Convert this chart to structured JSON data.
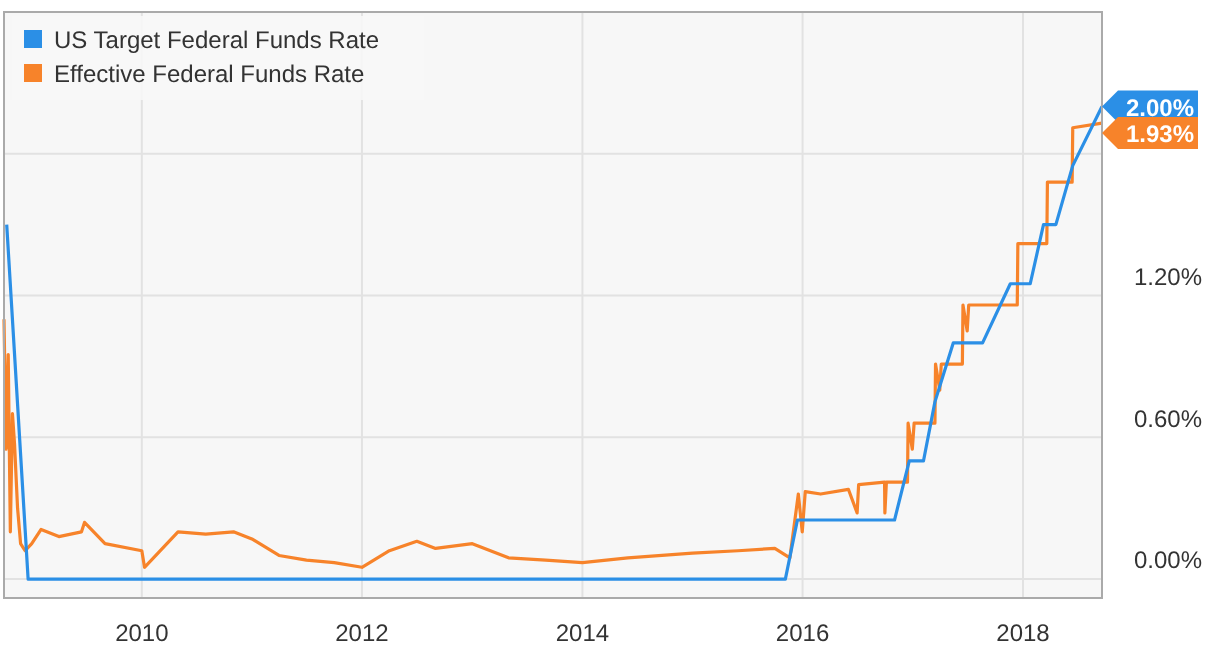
{
  "chart_data": {
    "type": "line",
    "xlim": [
      "2008-10-01",
      "2018-09-20"
    ],
    "ylim": [
      -0.08,
      2.4
    ],
    "xticks": [
      {
        "value": "2010-01-01",
        "label": "2010"
      },
      {
        "value": "2012-01-01",
        "label": "2012"
      },
      {
        "value": "2014-01-01",
        "label": "2014"
      },
      {
        "value": "2016-01-01",
        "label": "2016"
      },
      {
        "value": "2018-01-01",
        "label": "2018"
      }
    ],
    "yticks": [
      {
        "value": 0,
        "label": "0.00%"
      },
      {
        "value": 0.6,
        "label": "0.60%"
      },
      {
        "value": 1.2,
        "label": "1.20%"
      },
      {
        "value": 1.8,
        "label": null
      }
    ],
    "grid": true,
    "legend": "top left",
    "line_style": "solid",
    "marker": "none",
    "series": [
      {
        "name": "US Target Federal Funds Rate",
        "color": "#2b8fe6",
        "x": [
          "2008-10-10",
          "2008-12-20",
          "2015-11-05",
          "2015-12-15",
          "2016-11-01",
          "2016-12-20",
          "2017-02-05",
          "2017-03-15",
          "2017-05-15",
          "2017-08-20",
          "2017-11-20",
          "2018-01-25",
          "2018-03-10",
          "2018-04-20",
          "2018-06-15",
          "2018-09-20"
        ],
        "values": [
          1.5,
          0,
          0,
          0.25,
          0.25,
          0.5,
          0.5,
          0.75,
          1.0,
          1.0,
          1.25,
          1.25,
          1.5,
          1.5,
          1.75,
          2.0
        ]
      },
      {
        "name": "Effective Federal Funds Rate",
        "color": "#f7832a",
        "x": [
          "2008-10-01",
          "2008-10-08",
          "2008-10-15",
          "2008-10-22",
          "2008-10-29",
          "2008-11-05",
          "2008-11-15",
          "2008-11-25",
          "2008-12-10",
          "2009-01-01",
          "2009-02-01",
          "2009-04-01",
          "2009-06-15",
          "2009-06-25",
          "2009-09-01",
          "2010-01-01",
          "2010-01-10",
          "2010-05-01",
          "2010-08-01",
          "2010-11-01",
          "2011-01-01",
          "2011-04-01",
          "2011-07-01",
          "2011-10-01",
          "2012-01-01",
          "2012-04-01",
          "2012-07-01",
          "2012-09-01",
          "2013-01-01",
          "2013-05-01",
          "2013-09-01",
          "2014-01-01",
          "2014-06-01",
          "2015-01-01",
          "2015-06-01",
          "2015-10-01",
          "2015-11-20",
          "2015-12-18",
          "2015-12-31",
          "2016-01-10",
          "2016-03-01",
          "2016-06-01",
          "2016-06-30",
          "2016-07-05",
          "2016-09-29",
          "2016-09-30",
          "2016-10-05",
          "2016-12-14",
          "2016-12-16",
          "2016-12-30",
          "2017-01-05",
          "2017-03-15",
          "2017-03-17",
          "2017-03-31",
          "2017-04-05",
          "2017-06-14",
          "2017-06-16",
          "2017-06-30",
          "2017-07-05",
          "2017-12-13",
          "2017-12-15",
          "2018-03-21",
          "2018-03-23",
          "2018-06-13",
          "2018-06-15",
          "2018-09-20"
        ],
        "values": [
          1.1,
          0.55,
          0.95,
          0.2,
          0.7,
          0.57,
          0.3,
          0.15,
          0.12,
          0.15,
          0.21,
          0.18,
          0.2,
          0.24,
          0.15,
          0.12,
          0.05,
          0.2,
          0.19,
          0.2,
          0.17,
          0.1,
          0.08,
          0.07,
          0.05,
          0.12,
          0.16,
          0.13,
          0.15,
          0.09,
          0.08,
          0.07,
          0.09,
          0.11,
          0.12,
          0.13,
          0.09,
          0.36,
          0.2,
          0.37,
          0.36,
          0.38,
          0.28,
          0.4,
          0.41,
          0.28,
          0.41,
          0.41,
          0.66,
          0.55,
          0.66,
          0.66,
          0.91,
          0.8,
          0.91,
          0.91,
          1.16,
          1.05,
          1.16,
          1.16,
          1.42,
          1.42,
          1.68,
          1.68,
          1.91,
          1.93
        ]
      }
    ],
    "annotations": [
      {
        "text": "2.00%",
        "x": "2018-09-20",
        "y": 2.0
      },
      {
        "text": "1.93%",
        "x": "2018-09-20",
        "y": 1.93
      }
    ]
  }
}
